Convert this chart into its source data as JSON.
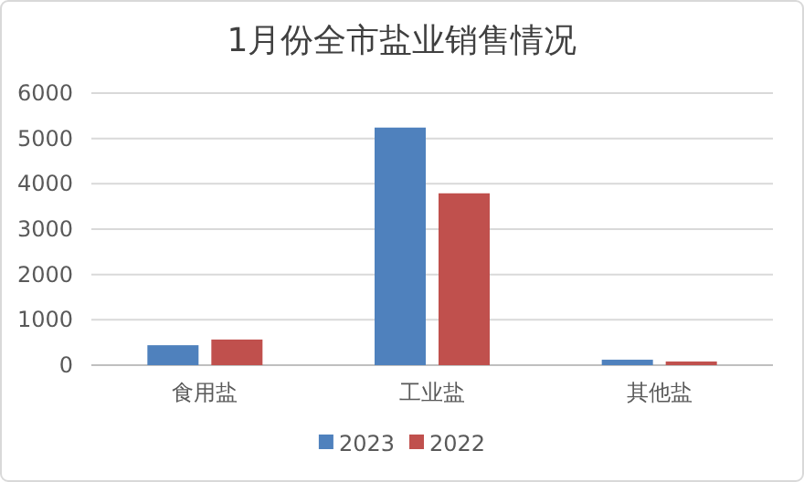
{
  "chart_data": {
    "type": "bar",
    "title": "1月份全市盐业销售情况",
    "categories": [
      "食用盐",
      "工业盐",
      "其他盐"
    ],
    "series": [
      {
        "name": "2023",
        "color": "#4f81bd",
        "values": [
          440,
          5240,
          120
        ]
      },
      {
        "name": "2022",
        "color": "#c0504d",
        "values": [
          565,
          3790,
          80
        ]
      }
    ],
    "ylim": [
      0,
      6000
    ],
    "yticks": [
      0,
      1000,
      2000,
      3000,
      4000,
      5000,
      6000
    ],
    "grid": "y",
    "legend": "bottom"
  }
}
